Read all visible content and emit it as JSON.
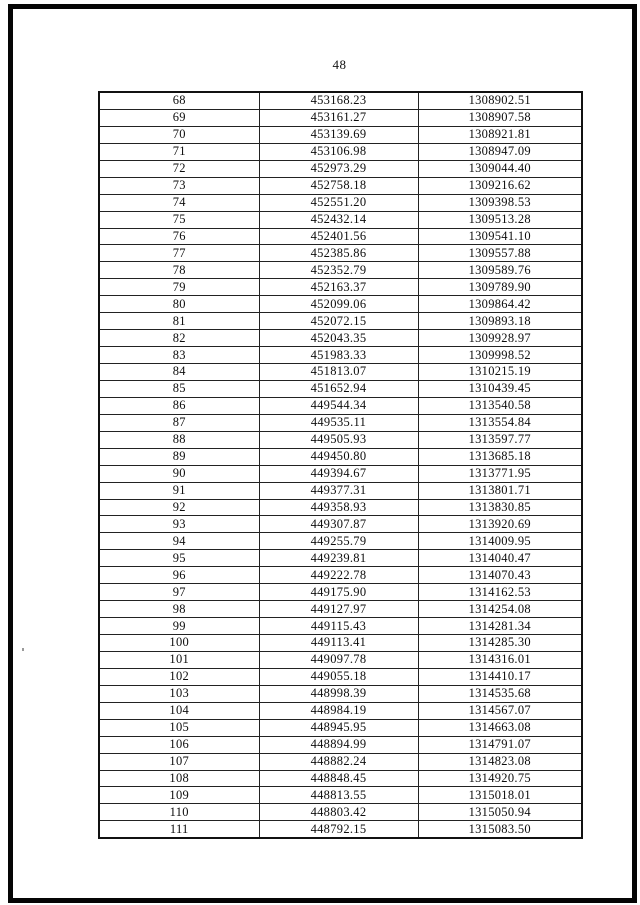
{
  "page": {
    "number": "48"
  },
  "table": {
    "rows": [
      [
        "68",
        "453168.23",
        "1308902.51"
      ],
      [
        "69",
        "453161.27",
        "1308907.58"
      ],
      [
        "70",
        "453139.69",
        "1308921.81"
      ],
      [
        "71",
        "453106.98",
        "1308947.09"
      ],
      [
        "72",
        "452973.29",
        "1309044.40"
      ],
      [
        "73",
        "452758.18",
        "1309216.62"
      ],
      [
        "74",
        "452551.20",
        "1309398.53"
      ],
      [
        "75",
        "452432.14",
        "1309513.28"
      ],
      [
        "76",
        "452401.56",
        "1309541.10"
      ],
      [
        "77",
        "452385.86",
        "1309557.88"
      ],
      [
        "78",
        "452352.79",
        "1309589.76"
      ],
      [
        "79",
        "452163.37",
        "1309789.90"
      ],
      [
        "80",
        "452099.06",
        "1309864.42"
      ],
      [
        "81",
        "452072.15",
        "1309893.18"
      ],
      [
        "82",
        "452043.35",
        "1309928.97"
      ],
      [
        "83",
        "451983.33",
        "1309998.52"
      ],
      [
        "84",
        "451813.07",
        "1310215.19"
      ],
      [
        "85",
        "451652.94",
        "1310439.45"
      ],
      [
        "86",
        "449544.34",
        "1313540.58"
      ],
      [
        "87",
        "449535.11",
        "1313554.84"
      ],
      [
        "88",
        "449505.93",
        "1313597.77"
      ],
      [
        "89",
        "449450.80",
        "1313685.18"
      ],
      [
        "90",
        "449394.67",
        "1313771.95"
      ],
      [
        "91",
        "449377.31",
        "1313801.71"
      ],
      [
        "92",
        "449358.93",
        "1313830.85"
      ],
      [
        "93",
        "449307.87",
        "1313920.69"
      ],
      [
        "94",
        "449255.79",
        "1314009.95"
      ],
      [
        "95",
        "449239.81",
        "1314040.47"
      ],
      [
        "96",
        "449222.78",
        "1314070.43"
      ],
      [
        "97",
        "449175.90",
        "1314162.53"
      ],
      [
        "98",
        "449127.97",
        "1314254.08"
      ],
      [
        "99",
        "449115.43",
        "1314281.34"
      ],
      [
        "100",
        "449113.41",
        "1314285.30"
      ],
      [
        "101",
        "449097.78",
        "1314316.01"
      ],
      [
        "102",
        "449055.18",
        "1314410.17"
      ],
      [
        "103",
        "448998.39",
        "1314535.68"
      ],
      [
        "104",
        "448984.19",
        "1314567.07"
      ],
      [
        "105",
        "448945.95",
        "1314663.08"
      ],
      [
        "106",
        "448894.99",
        "1314791.07"
      ],
      [
        "107",
        "448882.24",
        "1314823.08"
      ],
      [
        "108",
        "448848.45",
        "1314920.75"
      ],
      [
        "109",
        "448813.55",
        "1315018.01"
      ],
      [
        "110",
        "448803.42",
        "1315050.94"
      ],
      [
        "111",
        "448792.15",
        "1315083.50"
      ]
    ]
  }
}
